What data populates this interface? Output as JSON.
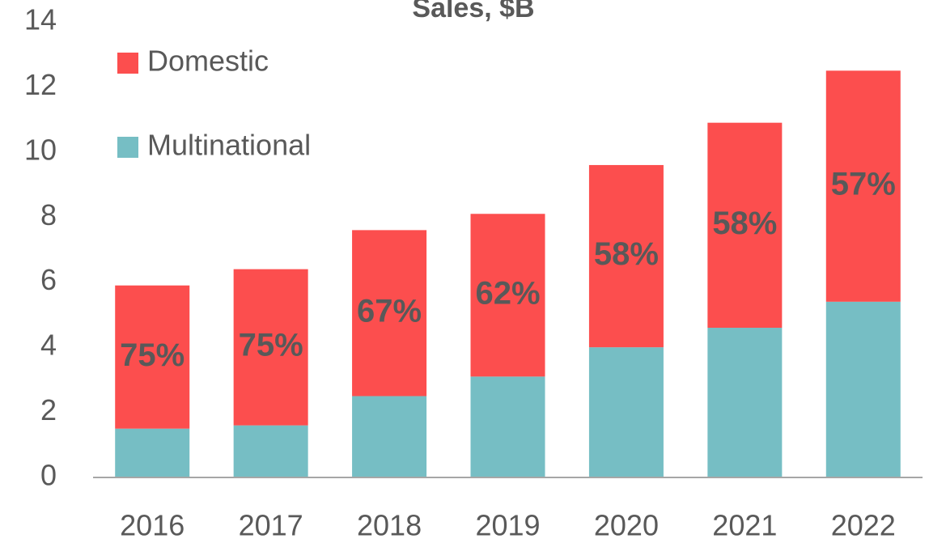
{
  "chart_data": {
    "type": "stacked_bar",
    "title": "Sales, $B",
    "categories": [
      "2016",
      "2017",
      "2018",
      "2019",
      "2020",
      "2021",
      "2022"
    ],
    "series": [
      {
        "name": "Multinational",
        "color": "#76bec4",
        "values": [
          1.5,
          1.6,
          2.5,
          3.1,
          4.0,
          4.6,
          5.4
        ]
      },
      {
        "name": "Domestic",
        "color": "#fc4e4e",
        "values": [
          4.4,
          4.8,
          5.1,
          5.0,
          5.6,
          6.3,
          7.1
        ]
      }
    ],
    "annotations": [
      "75%",
      "75%",
      "67%",
      "62%",
      "58%",
      "58%",
      "57%"
    ],
    "ylim": [
      0,
      14
    ],
    "yticks": [
      0,
      2,
      4,
      6,
      8,
      10,
      12,
      14
    ],
    "grid": false,
    "legend": "top-left"
  }
}
